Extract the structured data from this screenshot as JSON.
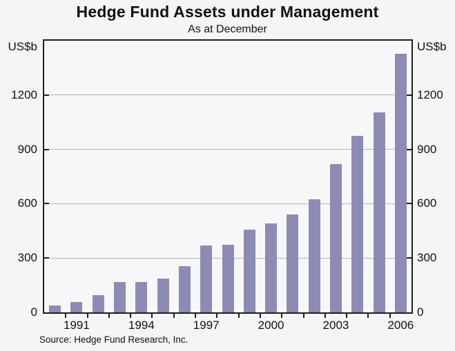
{
  "chart_data": {
    "type": "bar",
    "title": "Hedge Fund Assets under Management",
    "subtitle": "As at December",
    "unit_label_left": "US$b",
    "unit_label_right": "US$b",
    "source": "Source: Hedge Fund Research, Inc.",
    "categories": [
      1990,
      1991,
      1992,
      1993,
      1994,
      1995,
      1996,
      1997,
      1998,
      1999,
      2000,
      2001,
      2002,
      2003,
      2004,
      2005,
      2006
    ],
    "values": [
      39,
      58,
      96,
      168,
      167,
      186,
      257,
      368,
      375,
      456,
      491,
      539,
      626,
      820,
      973,
      1105,
      1427
    ],
    "xlabel": "",
    "ylabel": "US$b",
    "x_tick_labels": [
      "1991",
      "1994",
      "1997",
      "2000",
      "2003",
      "2006"
    ],
    "y_tick_labels": [
      "0",
      "300",
      "600",
      "900",
      "1200"
    ],
    "y_ticks": [
      0,
      300,
      600,
      900,
      1200
    ],
    "ylim": [
      0,
      1500
    ],
    "grid": "horizontal",
    "legend_position": "none",
    "bar_color": "#8b8bb4",
    "grid_color": "#b4b4b8",
    "frame_color": "#1c1c1c",
    "background_color": "#f5f5f6"
  }
}
